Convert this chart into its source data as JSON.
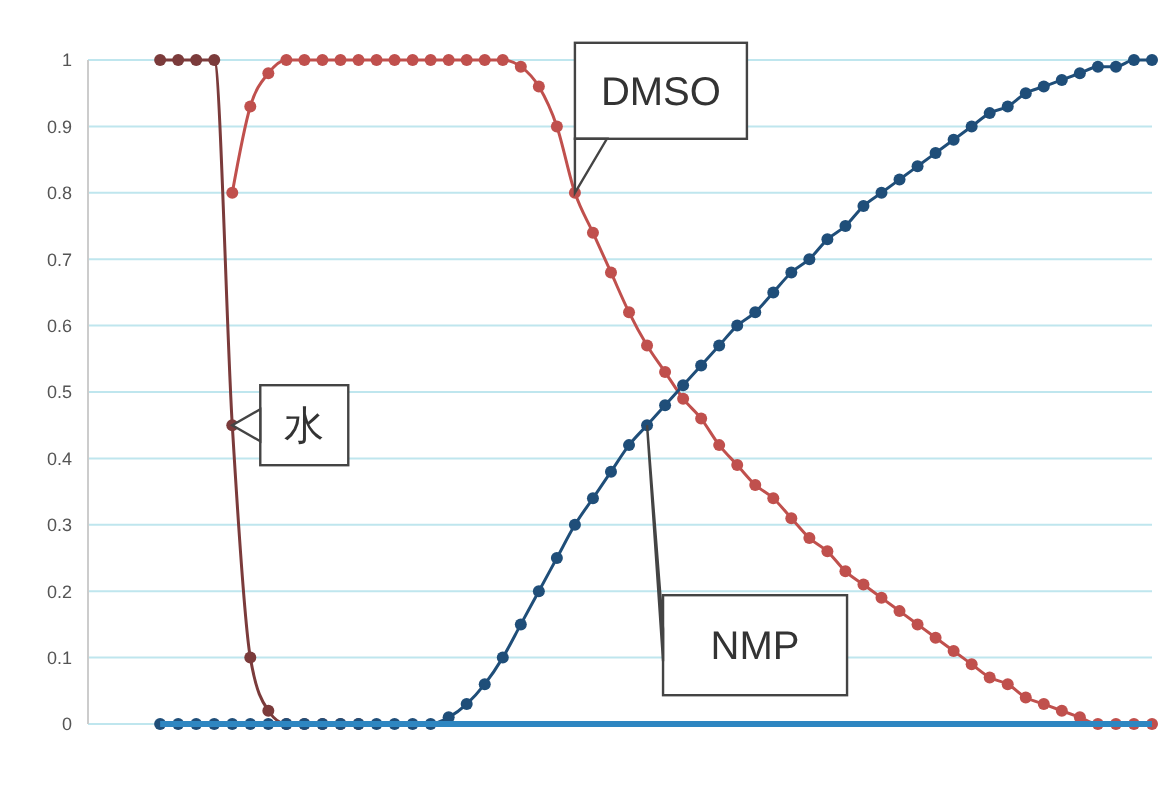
{
  "chart_data": {
    "type": "line",
    "categories": [
      null,
      null,
      null,
      null,
      null,
      null,
      null,
      null,
      null,
      null,
      null,
      null,
      null,
      null,
      null,
      null,
      null,
      null,
      null,
      null,
      null,
      null,
      null,
      null,
      null,
      null,
      null,
      null,
      null,
      null,
      null,
      null,
      null,
      null,
      null,
      null,
      null,
      null,
      null,
      null,
      null,
      null,
      null,
      null,
      null,
      null,
      null,
      null,
      null,
      null,
      null,
      null,
      null,
      null,
      null,
      null,
      null,
      null,
      null,
      null
    ],
    "ylim": [
      0,
      1
    ],
    "yticks": [
      0,
      0.1,
      0.2,
      0.3,
      0.4,
      0.5,
      0.6,
      0.7,
      0.8,
      0.9,
      1
    ],
    "grid": "y",
    "marker": "circle",
    "series": [
      {
        "name": "水",
        "color": "#7b3b3b",
        "values": [
          null,
          null,
          null,
          null,
          1,
          1,
          1,
          1,
          0.45,
          0.1,
          0.02,
          0,
          0,
          0,
          0,
          0,
          null,
          null,
          null,
          null,
          null,
          null,
          null,
          null,
          null,
          null,
          null,
          null,
          null,
          null,
          null,
          null,
          null,
          null,
          null,
          null,
          null,
          null,
          null,
          null,
          null,
          null,
          null,
          null,
          null,
          null,
          null,
          null,
          null,
          null,
          null,
          null,
          null,
          null,
          null,
          null,
          null,
          null,
          null,
          null
        ]
      },
      {
        "name": "DMSO",
        "color": "#c0504d",
        "values": [
          null,
          null,
          null,
          null,
          null,
          null,
          null,
          null,
          0.8,
          0.93,
          0.98,
          1,
          1,
          1,
          1,
          1,
          1,
          1,
          1,
          1,
          1,
          1,
          1,
          1,
          0.99,
          0.96,
          0.9,
          0.8,
          0.74,
          0.68,
          0.62,
          0.57,
          0.53,
          0.49,
          0.46,
          0.42,
          0.39,
          0.36,
          0.34,
          0.31,
          0.28,
          0.26,
          0.23,
          0.21,
          0.19,
          0.17,
          0.15,
          0.13,
          0.11,
          0.09,
          0.07,
          0.06,
          0.04,
          0.03,
          0.02,
          0.01,
          0,
          0,
          0,
          0
        ]
      },
      {
        "name": "NMP",
        "color": "#1f4e79",
        "values": [
          null,
          null,
          null,
          null,
          0,
          0,
          0,
          0,
          0,
          0,
          0,
          0,
          0,
          0,
          0,
          0,
          0,
          0,
          0,
          0,
          0.01,
          0.03,
          0.06,
          0.1,
          0.15,
          0.2,
          0.25,
          0.3,
          0.34,
          0.38,
          0.42,
          0.45,
          0.48,
          0.51,
          0.54,
          0.57,
          0.6,
          0.62,
          0.65,
          0.68,
          0.7,
          0.73,
          0.75,
          0.78,
          0.8,
          0.82,
          0.84,
          0.86,
          0.88,
          0.9,
          0.92,
          0.93,
          0.95,
          0.96,
          0.97,
          0.98,
          0.99,
          0.99,
          1,
          1
        ]
      },
      {
        "color": "#2e86c1",
        "marker": "none",
        "values": [
          null,
          null,
          null,
          null,
          0,
          0,
          0,
          0,
          0,
          0,
          0,
          0,
          0,
          0,
          0,
          0,
          0,
          0,
          0,
          0,
          0,
          0,
          0,
          0,
          0,
          0,
          0,
          0,
          0,
          0,
          0,
          0,
          0,
          0,
          0,
          0,
          0,
          0,
          0,
          0,
          0,
          0,
          0,
          0,
          0,
          0,
          0,
          0,
          0,
          0,
          0,
          0,
          0,
          0,
          0,
          0,
          0,
          0,
          0,
          0
        ]
      }
    ]
  }
}
